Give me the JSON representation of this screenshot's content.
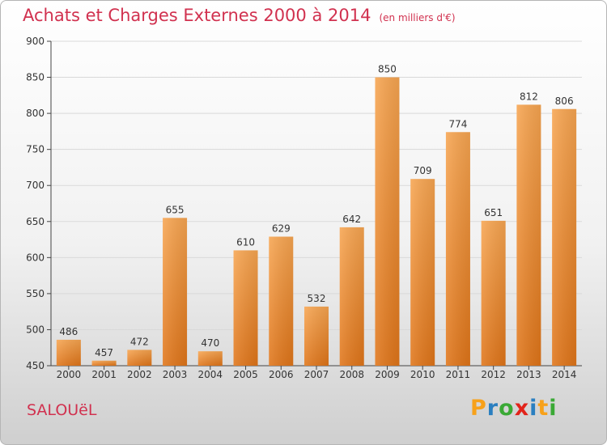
{
  "title": "Achats et Charges Externes 2000 à 2014",
  "unit": "(en milliers d'€)",
  "commune": "SALOUëL",
  "logo": {
    "letters": [
      "P",
      "r",
      "o",
      "x",
      "i",
      "t",
      "i"
    ],
    "colors": [
      "#f7a11a",
      "#2a7fc0",
      "#3aa935",
      "#e2231a",
      "#2a7fc0",
      "#f7a11a",
      "#3aa935"
    ]
  },
  "chart_data": {
    "type": "bar",
    "categories": [
      "2000",
      "2001",
      "2002",
      "2003",
      "2004",
      "2005",
      "2006",
      "2007",
      "2008",
      "2009",
      "2010",
      "2011",
      "2012",
      "2013",
      "2014"
    ],
    "values": [
      486,
      457,
      472,
      655,
      470,
      610,
      629,
      532,
      642,
      850,
      709,
      774,
      651,
      812,
      806
    ],
    "ylim": [
      450,
      900
    ],
    "yticks": [
      450,
      500,
      550,
      600,
      650,
      700,
      750,
      800,
      850,
      900
    ],
    "grid": true,
    "bar_color": "#f08a2c"
  }
}
